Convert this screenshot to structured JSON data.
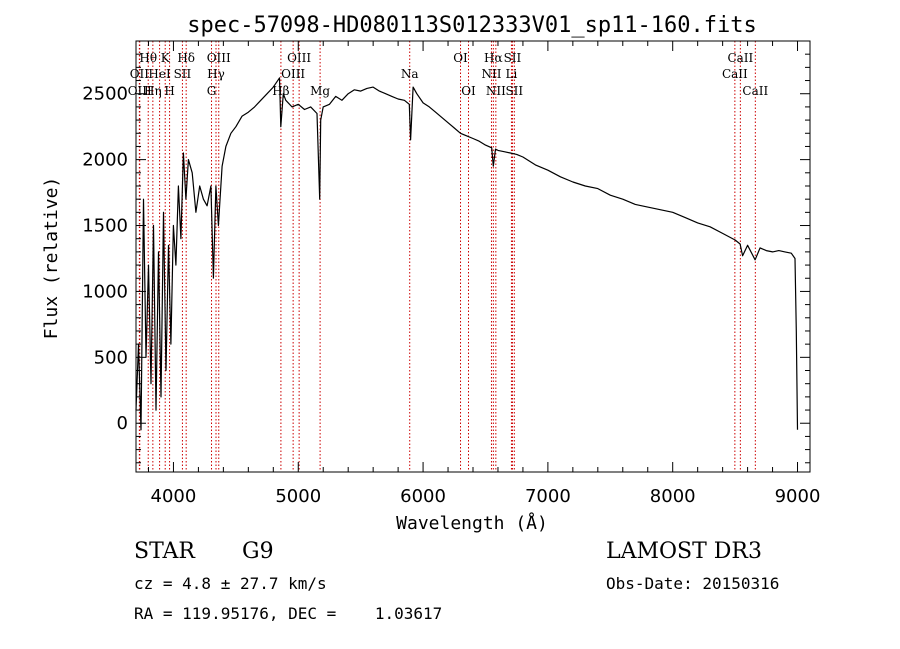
{
  "chart_data": {
    "type": "line",
    "title": "spec-57098-HD080113S012333V01_sp11-160.fits",
    "xlabel": "Wavelength (Å)",
    "ylabel": "Flux (relative)",
    "xlim": [
      3700,
      9100
    ],
    "ylim": [
      -370,
      2900
    ],
    "xticks": [
      4000,
      5000,
      6000,
      7000,
      8000,
      9000
    ],
    "yticks": [
      0,
      500,
      1000,
      1500,
      2000,
      2500
    ],
    "series": [
      {
        "name": "flux",
        "x": [
          3700,
          3720,
          3740,
          3760,
          3780,
          3800,
          3820,
          3840,
          3860,
          3880,
          3900,
          3920,
          3940,
          3960,
          3980,
          4000,
          4020,
          4040,
          4060,
          4080,
          4100,
          4120,
          4150,
          4180,
          4210,
          4240,
          4270,
          4300,
          4320,
          4340,
          4360,
          4390,
          4420,
          4460,
          4500,
          4550,
          4600,
          4650,
          4700,
          4750,
          4800,
          4850,
          4860,
          4880,
          4900,
          4950,
          5000,
          5050,
          5100,
          5150,
          5172,
          5180,
          5200,
          5250,
          5300,
          5350,
          5400,
          5450,
          5500,
          5550,
          5600,
          5650,
          5700,
          5750,
          5800,
          5850,
          5890,
          5900,
          5920,
          5950,
          6000,
          6050,
          6100,
          6150,
          6200,
          6250,
          6300,
          6350,
          6400,
          6450,
          6500,
          6550,
          6563,
          6580,
          6600,
          6650,
          6700,
          6750,
          6800,
          6900,
          7000,
          7100,
          7200,
          7300,
          7400,
          7500,
          7600,
          7700,
          7800,
          7900,
          8000,
          8100,
          8200,
          8300,
          8400,
          8500,
          8540,
          8560,
          8600,
          8660,
          8700,
          8750,
          8800,
          8850,
          8900,
          8950,
          8980,
          8990,
          9000
        ],
        "y": [
          100,
          600,
          -50,
          1700,
          500,
          1200,
          300,
          1500,
          100,
          1300,
          200,
          1600,
          400,
          1350,
          600,
          1500,
          1200,
          1800,
          1400,
          2050,
          1700,
          2000,
          1900,
          1600,
          1800,
          1700,
          1650,
          1800,
          1100,
          1800,
          1500,
          1950,
          2100,
          2200,
          2250,
          2330,
          2360,
          2400,
          2450,
          2500,
          2550,
          2620,
          2250,
          2500,
          2450,
          2400,
          2420,
          2380,
          2400,
          2350,
          1700,
          2300,
          2400,
          2420,
          2480,
          2450,
          2500,
          2530,
          2520,
          2540,
          2550,
          2520,
          2500,
          2480,
          2460,
          2450,
          2420,
          2150,
          2550,
          2500,
          2430,
          2400,
          2360,
          2320,
          2280,
          2240,
          2200,
          2180,
          2160,
          2140,
          2110,
          2090,
          1950,
          2080,
          2070,
          2060,
          2050,
          2040,
          2020,
          1960,
          1920,
          1870,
          1830,
          1800,
          1780,
          1730,
          1700,
          1660,
          1640,
          1620,
          1600,
          1560,
          1520,
          1490,
          1440,
          1390,
          1360,
          1270,
          1350,
          1240,
          1330,
          1310,
          1300,
          1310,
          1300,
          1290,
          1250,
          700,
          -50
        ]
      }
    ],
    "lines": [
      {
        "label": "Hθ",
        "x": 3798,
        "row": 1
      },
      {
        "label": "OII",
        "x": 3727,
        "row": 2
      },
      {
        "label": "OIII",
        "x": 3730,
        "row": 3
      },
      {
        "label": "K",
        "x": 3934,
        "row": 1
      },
      {
        "label": "HeI",
        "x": 3889,
        "row": 2
      },
      {
        "label": "Hη",
        "x": 3835,
        "row": 3
      },
      {
        "label": "SII",
        "x": 4072,
        "row": 2
      },
      {
        "label": "H",
        "x": 3969,
        "row": 3
      },
      {
        "label": "Hδ",
        "x": 4102,
        "row": 1
      },
      {
        "label": "OIII",
        "x": 4363,
        "row": 1
      },
      {
        "label": "Hγ",
        "x": 4341,
        "row": 2
      },
      {
        "label": "G",
        "x": 4305,
        "row": 3
      },
      {
        "label": "Hβ",
        "x": 4861,
        "row": 3
      },
      {
        "label": "OIII",
        "x": 5007,
        "row": 1
      },
      {
        "label": "OIII",
        "x": 4959,
        "row": 2
      },
      {
        "label": "Mg",
        "x": 5175,
        "row": 3
      },
      {
        "label": "Na",
        "x": 5893,
        "row": 2
      },
      {
        "label": "OI",
        "x": 6300,
        "row": 1
      },
      {
        "label": "OI",
        "x": 6364,
        "row": 3
      },
      {
        "label": "Hα",
        "x": 6563,
        "row": 1
      },
      {
        "label": "SII",
        "x": 6716,
        "row": 1
      },
      {
        "label": "NII",
        "x": 6548,
        "row": 2
      },
      {
        "label": "Li",
        "x": 6708,
        "row": 2
      },
      {
        "label": "NII",
        "x": 6583,
        "row": 3
      },
      {
        "label": "SII",
        "x": 6731,
        "row": 3
      },
      {
        "label": "CaII",
        "x": 8542,
        "row": 1
      },
      {
        "label": "CaII",
        "x": 8498,
        "row": 2
      },
      {
        "label": "CaII",
        "x": 8662,
        "row": 3
      }
    ],
    "line_color": "#cc0000"
  },
  "info": {
    "object_class": "STAR",
    "subclass": "G9",
    "survey": "LAMOST DR3",
    "redshift": "cz = 4.8 ± 27.7 km/s",
    "obs_date": "Obs-Date: 20150316",
    "coords": "RA = 119.95176, DEC =    1.03617"
  }
}
